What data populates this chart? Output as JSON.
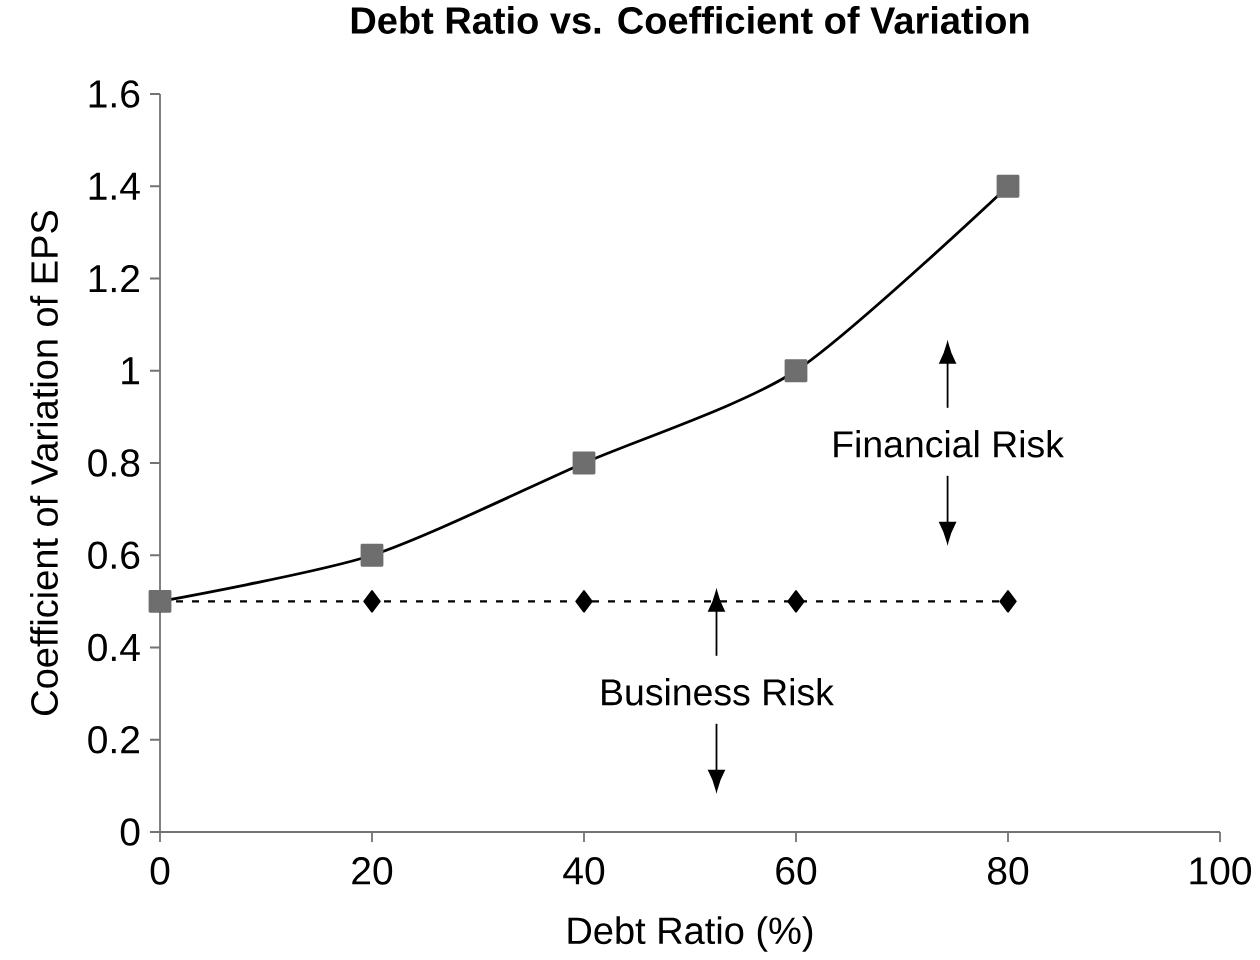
{
  "chart_data": {
    "type": "line",
    "title": "Debt Ratio vs. Coefficient of Variation",
    "xlabel": "Debt Ratio (%)",
    "ylabel": "Coefficient of Variation of EPS",
    "x": [
      0,
      20,
      40,
      60,
      80
    ],
    "series": [
      {
        "color": "#6e6e6e",
        "values": [
          0.5,
          0.6,
          0.8,
          1.0,
          1.4
        ],
        "marker": "square",
        "line_style": "solid"
      },
      {
        "color": "#000000",
        "values": [
          0.5,
          0.5,
          0.5,
          0.5,
          0.5
        ],
        "marker": "diamond",
        "line_style": "dashed"
      }
    ],
    "xlim": [
      0,
      100
    ],
    "xticks": [
      0,
      20,
      40,
      60,
      80,
      100
    ],
    "ylim": [
      0,
      1.6
    ],
    "yticks": [
      0,
      0.2,
      0.4,
      0.6,
      0.8,
      1,
      1.2,
      1.4,
      1.6
    ],
    "annotations": [
      "Financial Risk",
      "Business Risk"
    ]
  }
}
